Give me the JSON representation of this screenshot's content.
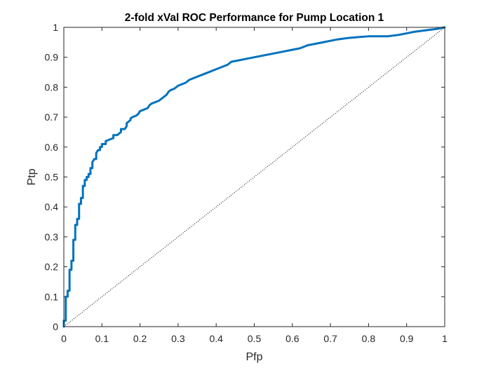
{
  "chart_data": {
    "type": "line",
    "title": "2-fold xVal ROC Performance for Pump Location 1",
    "xlabel": "Pfp",
    "ylabel": "Ptp",
    "xlim": [
      0,
      1
    ],
    "ylim": [
      0,
      1
    ],
    "x_ticks": [
      0,
      0.1,
      0.2,
      0.3,
      0.4,
      0.5,
      0.6,
      0.7,
      0.8,
      0.9,
      1
    ],
    "y_ticks": [
      0,
      0.1,
      0.2,
      0.3,
      0.4,
      0.5,
      0.6,
      0.7,
      0.8,
      0.9,
      1
    ],
    "x_tick_labels": [
      "0",
      "0.1",
      "0.2",
      "0.3",
      "0.4",
      "0.5",
      "0.6",
      "0.7",
      "0.8",
      "0.9",
      "1"
    ],
    "y_tick_labels": [
      "0",
      "0.1",
      "0.2",
      "0.3",
      "0.4",
      "0.5",
      "0.6",
      "0.7",
      "0.8",
      "0.9",
      "1"
    ],
    "grid": false,
    "legend": "none",
    "colors": {
      "roc": "#0072BD",
      "diagonal": "#000000",
      "axes": "#262626"
    },
    "series": [
      {
        "style": "solid",
        "x": [
          0,
          0,
          0.005,
          0.005,
          0.01,
          0.01,
          0.015,
          0.015,
          0.02,
          0.02,
          0.025,
          0.025,
          0.03,
          0.03,
          0.035,
          0.035,
          0.04,
          0.04,
          0.045,
          0.045,
          0.05,
          0.05,
          0.055,
          0.055,
          0.06,
          0.06,
          0.065,
          0.065,
          0.07,
          0.07,
          0.075,
          0.075,
          0.08,
          0.085,
          0.085,
          0.09,
          0.095,
          0.095,
          0.1,
          0.1,
          0.11,
          0.11,
          0.12,
          0.13,
          0.13,
          0.14,
          0.15,
          0.15,
          0.16,
          0.165,
          0.165,
          0.17,
          0.175,
          0.175,
          0.18,
          0.19,
          0.195,
          0.2,
          0.21,
          0.22,
          0.225,
          0.23,
          0.24,
          0.25,
          0.26,
          0.27,
          0.275,
          0.28,
          0.29,
          0.3,
          0.31,
          0.32,
          0.33,
          0.34,
          0.35,
          0.36,
          0.37,
          0.38,
          0.39,
          0.4,
          0.42,
          0.43,
          0.44,
          0.46,
          0.48,
          0.5,
          0.52,
          0.54,
          0.56,
          0.58,
          0.6,
          0.62,
          0.64,
          0.66,
          0.68,
          0.7,
          0.72,
          0.75,
          0.8,
          0.85,
          0.88,
          0.9,
          0.92,
          0.95,
          0.98,
          1
        ],
        "y": [
          0,
          0.02,
          0.02,
          0.1,
          0.1,
          0.12,
          0.12,
          0.19,
          0.19,
          0.22,
          0.22,
          0.29,
          0.29,
          0.34,
          0.34,
          0.36,
          0.36,
          0.41,
          0.41,
          0.43,
          0.43,
          0.47,
          0.47,
          0.49,
          0.49,
          0.5,
          0.5,
          0.51,
          0.51,
          0.53,
          0.53,
          0.55,
          0.56,
          0.56,
          0.58,
          0.59,
          0.59,
          0.6,
          0.6,
          0.61,
          0.61,
          0.62,
          0.625,
          0.63,
          0.64,
          0.64,
          0.65,
          0.66,
          0.66,
          0.67,
          0.68,
          0.685,
          0.69,
          0.695,
          0.7,
          0.705,
          0.71,
          0.72,
          0.725,
          0.73,
          0.74,
          0.745,
          0.75,
          0.755,
          0.765,
          0.775,
          0.785,
          0.79,
          0.795,
          0.805,
          0.81,
          0.815,
          0.825,
          0.83,
          0.835,
          0.84,
          0.845,
          0.85,
          0.855,
          0.86,
          0.87,
          0.875,
          0.885,
          0.89,
          0.895,
          0.9,
          0.905,
          0.91,
          0.915,
          0.92,
          0.925,
          0.93,
          0.94,
          0.945,
          0.95,
          0.955,
          0.96,
          0.965,
          0.97,
          0.97,
          0.975,
          0.98,
          0.985,
          0.99,
          0.995,
          1
        ]
      },
      {
        "style": "dotted",
        "x": [
          0,
          1
        ],
        "y": [
          0,
          1
        ]
      }
    ]
  }
}
